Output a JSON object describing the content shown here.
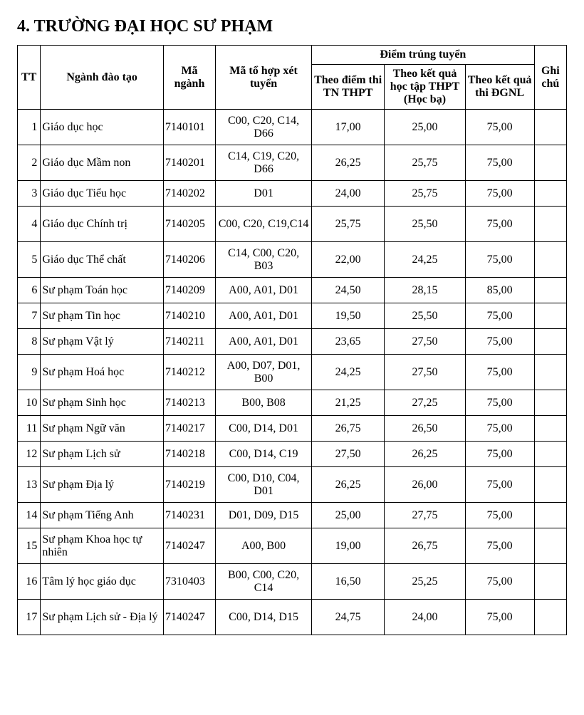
{
  "title": "4. TRƯỜNG ĐẠI HỌC SƯ PHẠM",
  "headers": {
    "tt": "TT",
    "name": "Ngành đào tạo",
    "code": "Mã ngành",
    "combo": "Mã tổ hợp xét tuyển",
    "score_group": "Điểm trúng tuyển",
    "score1": "Theo điểm thi TN THPT",
    "score2": "Theo kết quả học tập THPT (Học bạ)",
    "score3": "Theo kết quả thi ĐGNL",
    "note": "Ghi chú"
  },
  "rows": [
    {
      "tt": "1",
      "name": "Giáo dục học",
      "code": "7140101",
      "combo": "C00, C20, C14, D66",
      "s1": "17,00",
      "s2": "25,00",
      "s3": "75,00",
      "tall": true
    },
    {
      "tt": "2",
      "name": "Giáo dục Mầm non",
      "code": "7140201",
      "combo": "C14, C19, C20, D66",
      "s1": "26,25",
      "s2": "25,75",
      "s3": "75,00",
      "tall": true
    },
    {
      "tt": "3",
      "name": "Giáo dục Tiểu học",
      "code": "7140202",
      "combo": "D01",
      "s1": "24,00",
      "s2": "25,75",
      "s3": "75,00"
    },
    {
      "tt": "4",
      "name": "Giáo dục Chính trị",
      "code": "7140205",
      "combo": "C00, C20, C19,C14",
      "s1": "25,75",
      "s2": "25,50",
      "s3": "75,00",
      "tall": true
    },
    {
      "tt": "5",
      "name": "Giáo dục Thể chất",
      "code": "7140206",
      "combo": "C14, C00, C20, B03",
      "s1": "22,00",
      "s2": "24,25",
      "s3": "75,00",
      "tall": true
    },
    {
      "tt": "6",
      "name": "Sư phạm Toán học",
      "code": "7140209",
      "combo": "A00, A01, D01",
      "s1": "24,50",
      "s2": "28,15",
      "s3": "85,00"
    },
    {
      "tt": "7",
      "name": "Sư phạm Tin học",
      "code": "7140210",
      "combo": "A00, A01, D01",
      "s1": "19,50",
      "s2": "25,50",
      "s3": "75,00"
    },
    {
      "tt": "8",
      "name": "Sư phạm Vật lý",
      "code": "7140211",
      "combo": "A00, A01, D01",
      "s1": "23,65",
      "s2": "27,50",
      "s3": "75,00"
    },
    {
      "tt": "9",
      "name": "Sư phạm Hoá học",
      "code": "7140212",
      "combo": "A00, D07, D01, B00",
      "s1": "24,25",
      "s2": "27,50",
      "s3": "75,00",
      "tall": true
    },
    {
      "tt": "10",
      "name": "Sư phạm Sinh học",
      "code": "7140213",
      "combo": "B00, B08",
      "s1": "21,25",
      "s2": "27,25",
      "s3": "75,00"
    },
    {
      "tt": "11",
      "name": "Sư phạm Ngữ văn",
      "code": "7140217",
      "combo": "C00, D14, D01",
      "s1": "26,75",
      "s2": "26,50",
      "s3": "75,00"
    },
    {
      "tt": "12",
      "name": "Sư phạm Lịch sử",
      "code": "7140218",
      "combo": "C00, D14, C19",
      "s1": "27,50",
      "s2": "26,25",
      "s3": "75,00"
    },
    {
      "tt": "13",
      "name": "Sư phạm Địa lý",
      "code": "7140219",
      "combo": "C00, D10, C04, D01",
      "s1": "26,25",
      "s2": "26,00",
      "s3": "75,00",
      "tall": true
    },
    {
      "tt": "14",
      "name": "Sư phạm Tiếng Anh",
      "code": "7140231",
      "combo": "D01, D09, D15",
      "s1": "25,00",
      "s2": "27,75",
      "s3": "75,00"
    },
    {
      "tt": "15",
      "name": "Sư phạm Khoa học tự nhiên",
      "code": "7140247",
      "combo": "A00, B00",
      "s1": "19,00",
      "s2": "26,75",
      "s3": "75,00",
      "tall": true
    },
    {
      "tt": "16",
      "name": "Tâm lý học giáo dục",
      "code": "7310403",
      "combo": "B00, C00, C20, C14",
      "s1": "16,50",
      "s2": "25,25",
      "s3": "75,00",
      "tall": true
    },
    {
      "tt": "17",
      "name": "Sư phạm Lịch sử - Địa lý",
      "code": "7140247",
      "combo": "C00, D14, D15",
      "s1": "24,75",
      "s2": "24,00",
      "s3": "75,00",
      "tall": true
    }
  ]
}
